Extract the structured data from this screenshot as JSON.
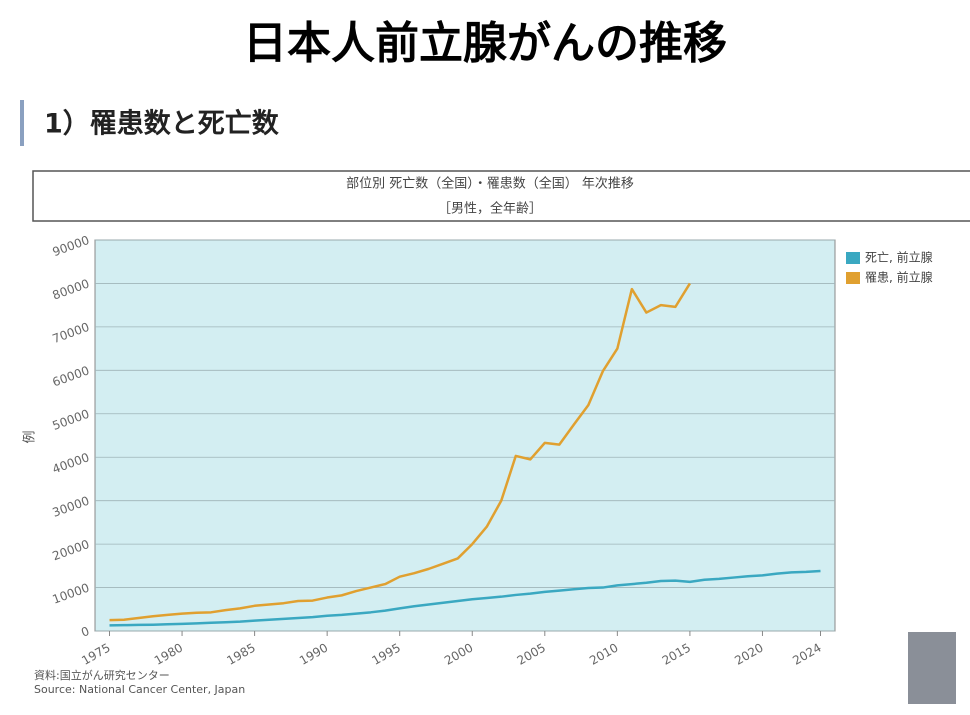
{
  "slide": {
    "title": "日本人前立腺がんの推移",
    "subtitle": "1）罹患数と死亡数"
  },
  "chart_data": {
    "type": "line",
    "title": "部位別 死亡数（全国）・罹患数（全国） 年次推移",
    "subtitle": "［男性，全年齢］",
    "ylabel": "例",
    "x": [
      1975,
      1976,
      1977,
      1978,
      1979,
      1980,
      1981,
      1982,
      1983,
      1984,
      1985,
      1986,
      1987,
      1988,
      1989,
      1990,
      1991,
      1992,
      1993,
      1994,
      1995,
      1996,
      1997,
      1998,
      1999,
      2000,
      2001,
      2002,
      2003,
      2004,
      2005,
      2006,
      2007,
      2008,
      2009,
      2010,
      2011,
      2012,
      2013,
      2014,
      2015,
      2016,
      2017,
      2018,
      2019,
      2020,
      2021,
      2022,
      2023,
      2024
    ],
    "series": [
      {
        "name": "死亡, 前立腺",
        "color": "#3aa8c1",
        "values": [
          1300,
          1350,
          1400,
          1450,
          1550,
          1650,
          1750,
          1900,
          2000,
          2150,
          2400,
          2600,
          2800,
          3000,
          3200,
          3500,
          3700,
          4000,
          4300,
          4700,
          5200,
          5700,
          6100,
          6500,
          6900,
          7300,
          7600,
          7900,
          8300,
          8600,
          9000,
          9300,
          9600,
          9900,
          10000,
          10500,
          10800,
          11100,
          11500,
          11600,
          11300,
          11800,
          12000,
          12300,
          12600,
          12800,
          13200,
          13500,
          13600,
          13800
        ]
      },
      {
        "name": "罹患, 前立腺",
        "color": "#e0a030",
        "values": [
          2500,
          2600,
          3000,
          3400,
          3700,
          4000,
          4200,
          4300,
          4800,
          5200,
          5800,
          6100,
          6400,
          6900,
          7000,
          7700,
          8200,
          9200,
          10000,
          10800,
          12500,
          13300,
          14300,
          15500,
          16700,
          20000,
          24000,
          30000,
          40300,
          39500,
          43300,
          42900,
          47500,
          52000,
          59800,
          65000,
          78700,
          73300,
          75000,
          74600,
          80000,
          null,
          null,
          null,
          null,
          null,
          null,
          null,
          null,
          null
        ]
      }
    ],
    "xlim": [
      1974,
      2025
    ],
    "xticks": [
      1975,
      1980,
      1985,
      1990,
      1995,
      2000,
      2005,
      2010,
      2015,
      2020,
      2024
    ],
    "ylim": [
      0,
      90000
    ],
    "yticks": [
      0,
      10000,
      20000,
      30000,
      40000,
      50000,
      60000,
      70000,
      80000,
      90000
    ],
    "grid": true,
    "legend": "right",
    "plot_background": "#d3eef2",
    "notes": [
      "資料:国立がん研究センター",
      "Source: National Cancer Center, Japan"
    ]
  }
}
